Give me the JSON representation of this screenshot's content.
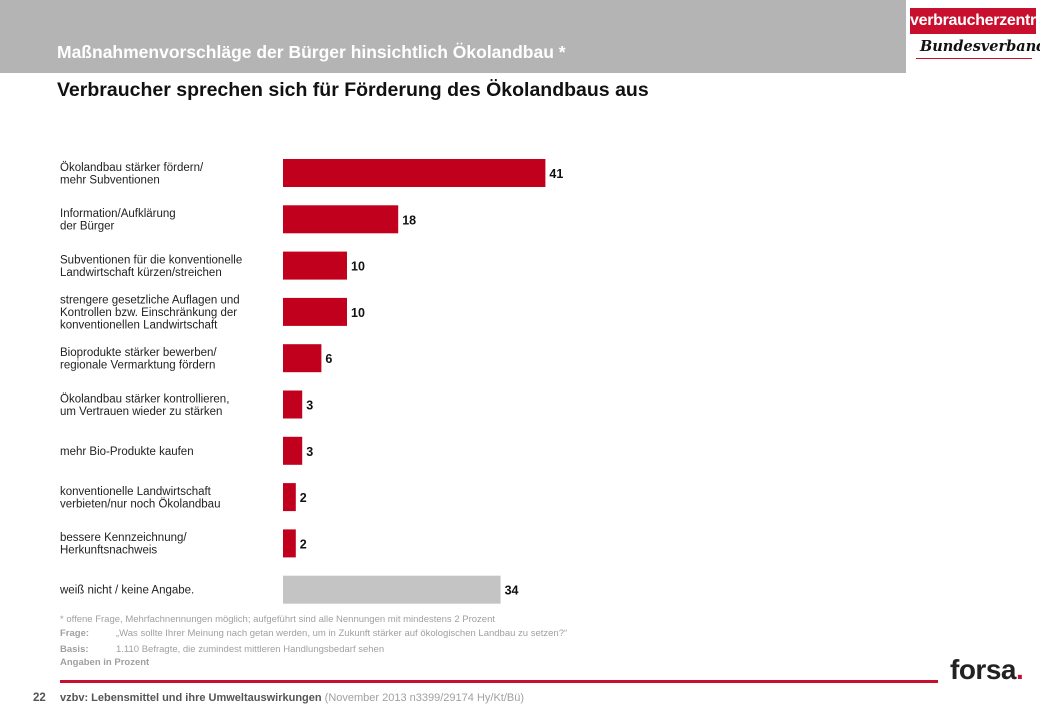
{
  "header": {
    "title": "Maßnahmenvorschläge der Bürger hinsichtlich Ökolandbau *",
    "subtitle": "Verbraucher sprechen sich für Förderung des Ökolandbaus aus"
  },
  "logo": {
    "top": "verbraucherzentrale",
    "bottom": "Bundesverband",
    "color": "#c8102e"
  },
  "chart_data": {
    "type": "bar",
    "orientation": "horizontal",
    "categories": [
      [
        "Ökolandbau stärker fördern/",
        "mehr Subventionen"
      ],
      [
        "Information/Aufklärung",
        "der Bürger"
      ],
      [
        "Subventionen für die konventionelle",
        "Landwirtschaft kürzen/streichen"
      ],
      [
        "strengere gesetzliche Auflagen und",
        "Kontrollen bzw. Einschränkung der",
        "konventionellen Landwirtschaft"
      ],
      [
        "Bioprodukte stärker bewerben/",
        "regionale Vermarktung fördern"
      ],
      [
        "Ökolandbau stärker kontrollieren,",
        "um Vertrauen wieder zu stärken"
      ],
      [
        "mehr Bio-Produkte kaufen"
      ],
      [
        "konventionelle Landwirtschaft",
        "verbieten/nur noch Ökolandbau"
      ],
      [
        "bessere Kennzeichnung/",
        "Herkunftsnachweis"
      ],
      [
        "weiß nicht / keine Angabe."
      ]
    ],
    "values": [
      41,
      18,
      10,
      10,
      6,
      3,
      3,
      2,
      2,
      34
    ],
    "colors": [
      "#c0001c",
      "#c0001c",
      "#c0001c",
      "#c0001c",
      "#c0001c",
      "#c0001c",
      "#c0001c",
      "#c0001c",
      "#c0001c",
      "#c4c4c4"
    ],
    "unit": "Angaben in Prozent"
  },
  "notes": {
    "line1": "* offene Frage, Mehrfachnennungen möglich; aufgeführt sind alle Nennungen mit mindestens 2 Prozent",
    "frage_key": "Frage:",
    "frage_text": "„Was sollte Ihrer Meinung nach getan werden, um in Zukunft stärker auf ökologischen Landbau zu setzen?“",
    "basis_key": "Basis:",
    "basis_text": "1.110 Befragte, die zumindest mittleren Handlungsbedarf sehen",
    "unit_note": "Angaben in Prozent"
  },
  "footer": {
    "page_number": "22",
    "source_bold": "vzbv: Lebensmittel und ihre Umweltauswirkungen",
    "source_light": "(November 2013   n3399/29174  Hy/Kt/Bü)",
    "brand": "forsa",
    "brand_dot": "."
  }
}
